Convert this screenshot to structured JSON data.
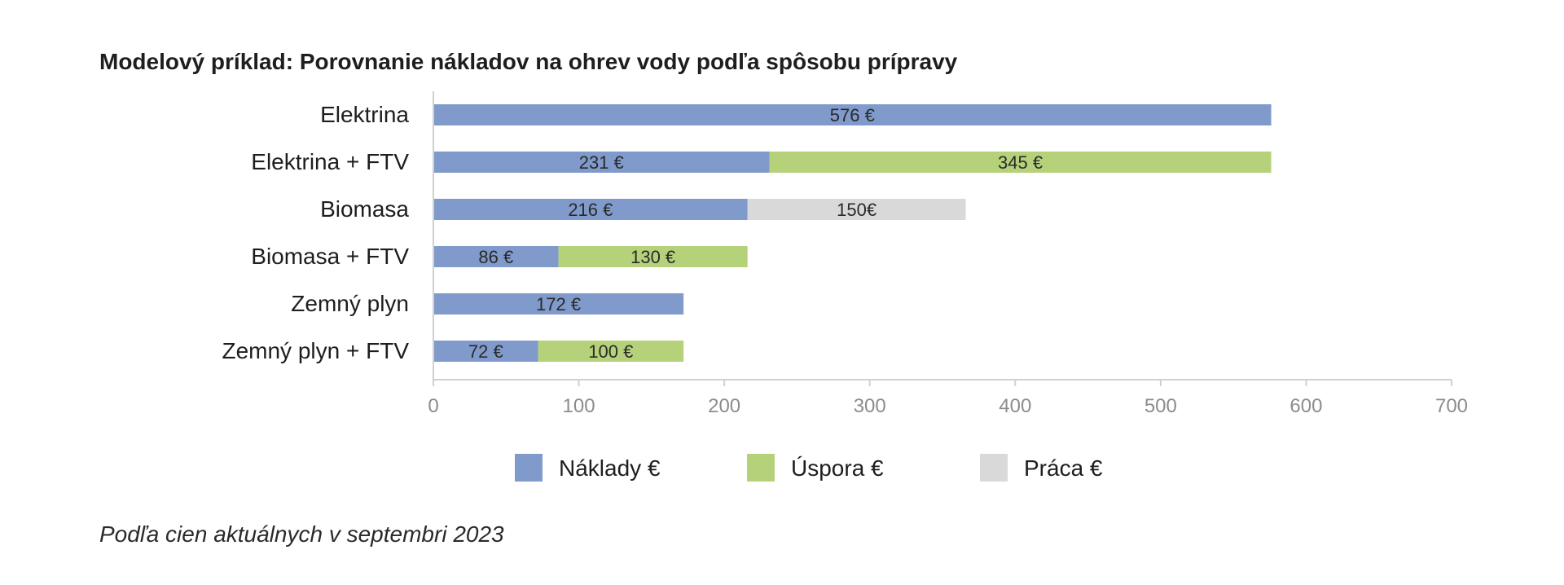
{
  "chart_data": {
    "type": "bar",
    "orientation": "horizontal",
    "stacked": true,
    "title": "Modelový príklad: Porovnanie nákladov na ohrev vody podľa spôsobu prípravy",
    "categories": [
      "Elektrina",
      "Elektrina + FTV",
      "Biomasa",
      "Biomasa + FTV",
      "Zemný plyn",
      "Zemný plyn + FTV"
    ],
    "series": [
      {
        "name": "Náklady €",
        "color": "#7f9acb",
        "values": [
          576,
          231,
          216,
          86,
          172,
          72
        ],
        "labels": [
          "576 €",
          "231 €",
          "216 €",
          "86 €",
          "172 €",
          "72 €"
        ]
      },
      {
        "name": "Úspora €",
        "color": "#b5d27a",
        "values": [
          0,
          345,
          0,
          130,
          0,
          100
        ],
        "labels": [
          "",
          "345 €",
          "",
          "130 €",
          "",
          "100 €"
        ]
      },
      {
        "name": "Práca €",
        "color": "#d9d9d9",
        "values": [
          0,
          0,
          150,
          0,
          0,
          0
        ],
        "labels": [
          "",
          "",
          "150€",
          "",
          "",
          ""
        ]
      }
    ],
    "xlim": [
      0,
      700
    ],
    "xticks": [
      0,
      100,
      200,
      300,
      400,
      500,
      600,
      700
    ],
    "xlabel": "",
    "ylabel": "",
    "grid": false,
    "legend_position": "bottom"
  },
  "footnote": "Podľa cien aktuálnych v septembri 2023"
}
